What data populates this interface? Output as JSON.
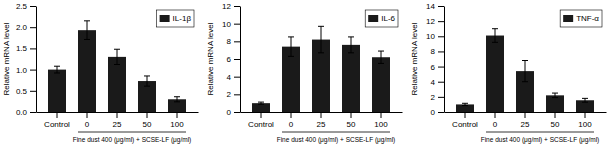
{
  "chart_data": [
    {
      "type": "bar",
      "ylabel": "Relative mRNA level",
      "xlabel": "Fine dust 400 (μg/ml)  + SCSE-LF (μg/ml)",
      "categories": [
        "Control",
        "0",
        "25",
        "50",
        "100"
      ],
      "series": [
        {
          "name": "IL-1β",
          "color": "#1a1a1a",
          "values": [
            1.0,
            1.93,
            1.3,
            0.73,
            0.3
          ],
          "errors": [
            0.08,
            0.22,
            0.18,
            0.12,
            0.06
          ]
        }
      ],
      "ylim": [
        0,
        2.5
      ],
      "yticks": [
        {
          "value": 0,
          "label": "0.0"
        },
        0.5,
        {
          "value": 1,
          "label": "1.0"
        },
        1.5,
        {
          "value": 2,
          "label": "2.0"
        },
        2.5
      ],
      "legend": "upper right"
    },
    {
      "type": "bar",
      "ylabel": "Relative mRNA level",
      "xlabel": "Fine dust 400 (μg/ml)  + SCSE-LF (μg/ml)",
      "categories": [
        "Control",
        "0",
        "25",
        "50",
        "100"
      ],
      "series": [
        {
          "name": "IL-6",
          "color": "#1a1a1a",
          "values": [
            1.0,
            7.4,
            8.2,
            7.6,
            6.2
          ],
          "errors": [
            0.12,
            1.1,
            1.5,
            0.9,
            0.7
          ]
        }
      ],
      "ylim": [
        0,
        12
      ],
      "yticks": [
        0,
        2,
        4,
        6,
        8,
        10,
        12
      ],
      "legend": "upper right"
    },
    {
      "type": "bar",
      "ylabel": "Relative mRNA level",
      "xlabel": "Fine dust 400 (μg/ml)  + SCSE-LF (μg/ml)",
      "categories": [
        "Control",
        "0",
        "25",
        "50",
        "100"
      ],
      "series": [
        {
          "name": "TNF-α",
          "color": "#1a1a1a",
          "values": [
            1.0,
            10.1,
            5.4,
            2.2,
            1.55
          ],
          "errors": [
            0.15,
            0.9,
            1.4,
            0.3,
            0.25
          ]
        }
      ],
      "ylim": [
        0,
        14
      ],
      "yticks": [
        0,
        2,
        4,
        6,
        8,
        10,
        12,
        14
      ],
      "legend": "upper right"
    }
  ]
}
